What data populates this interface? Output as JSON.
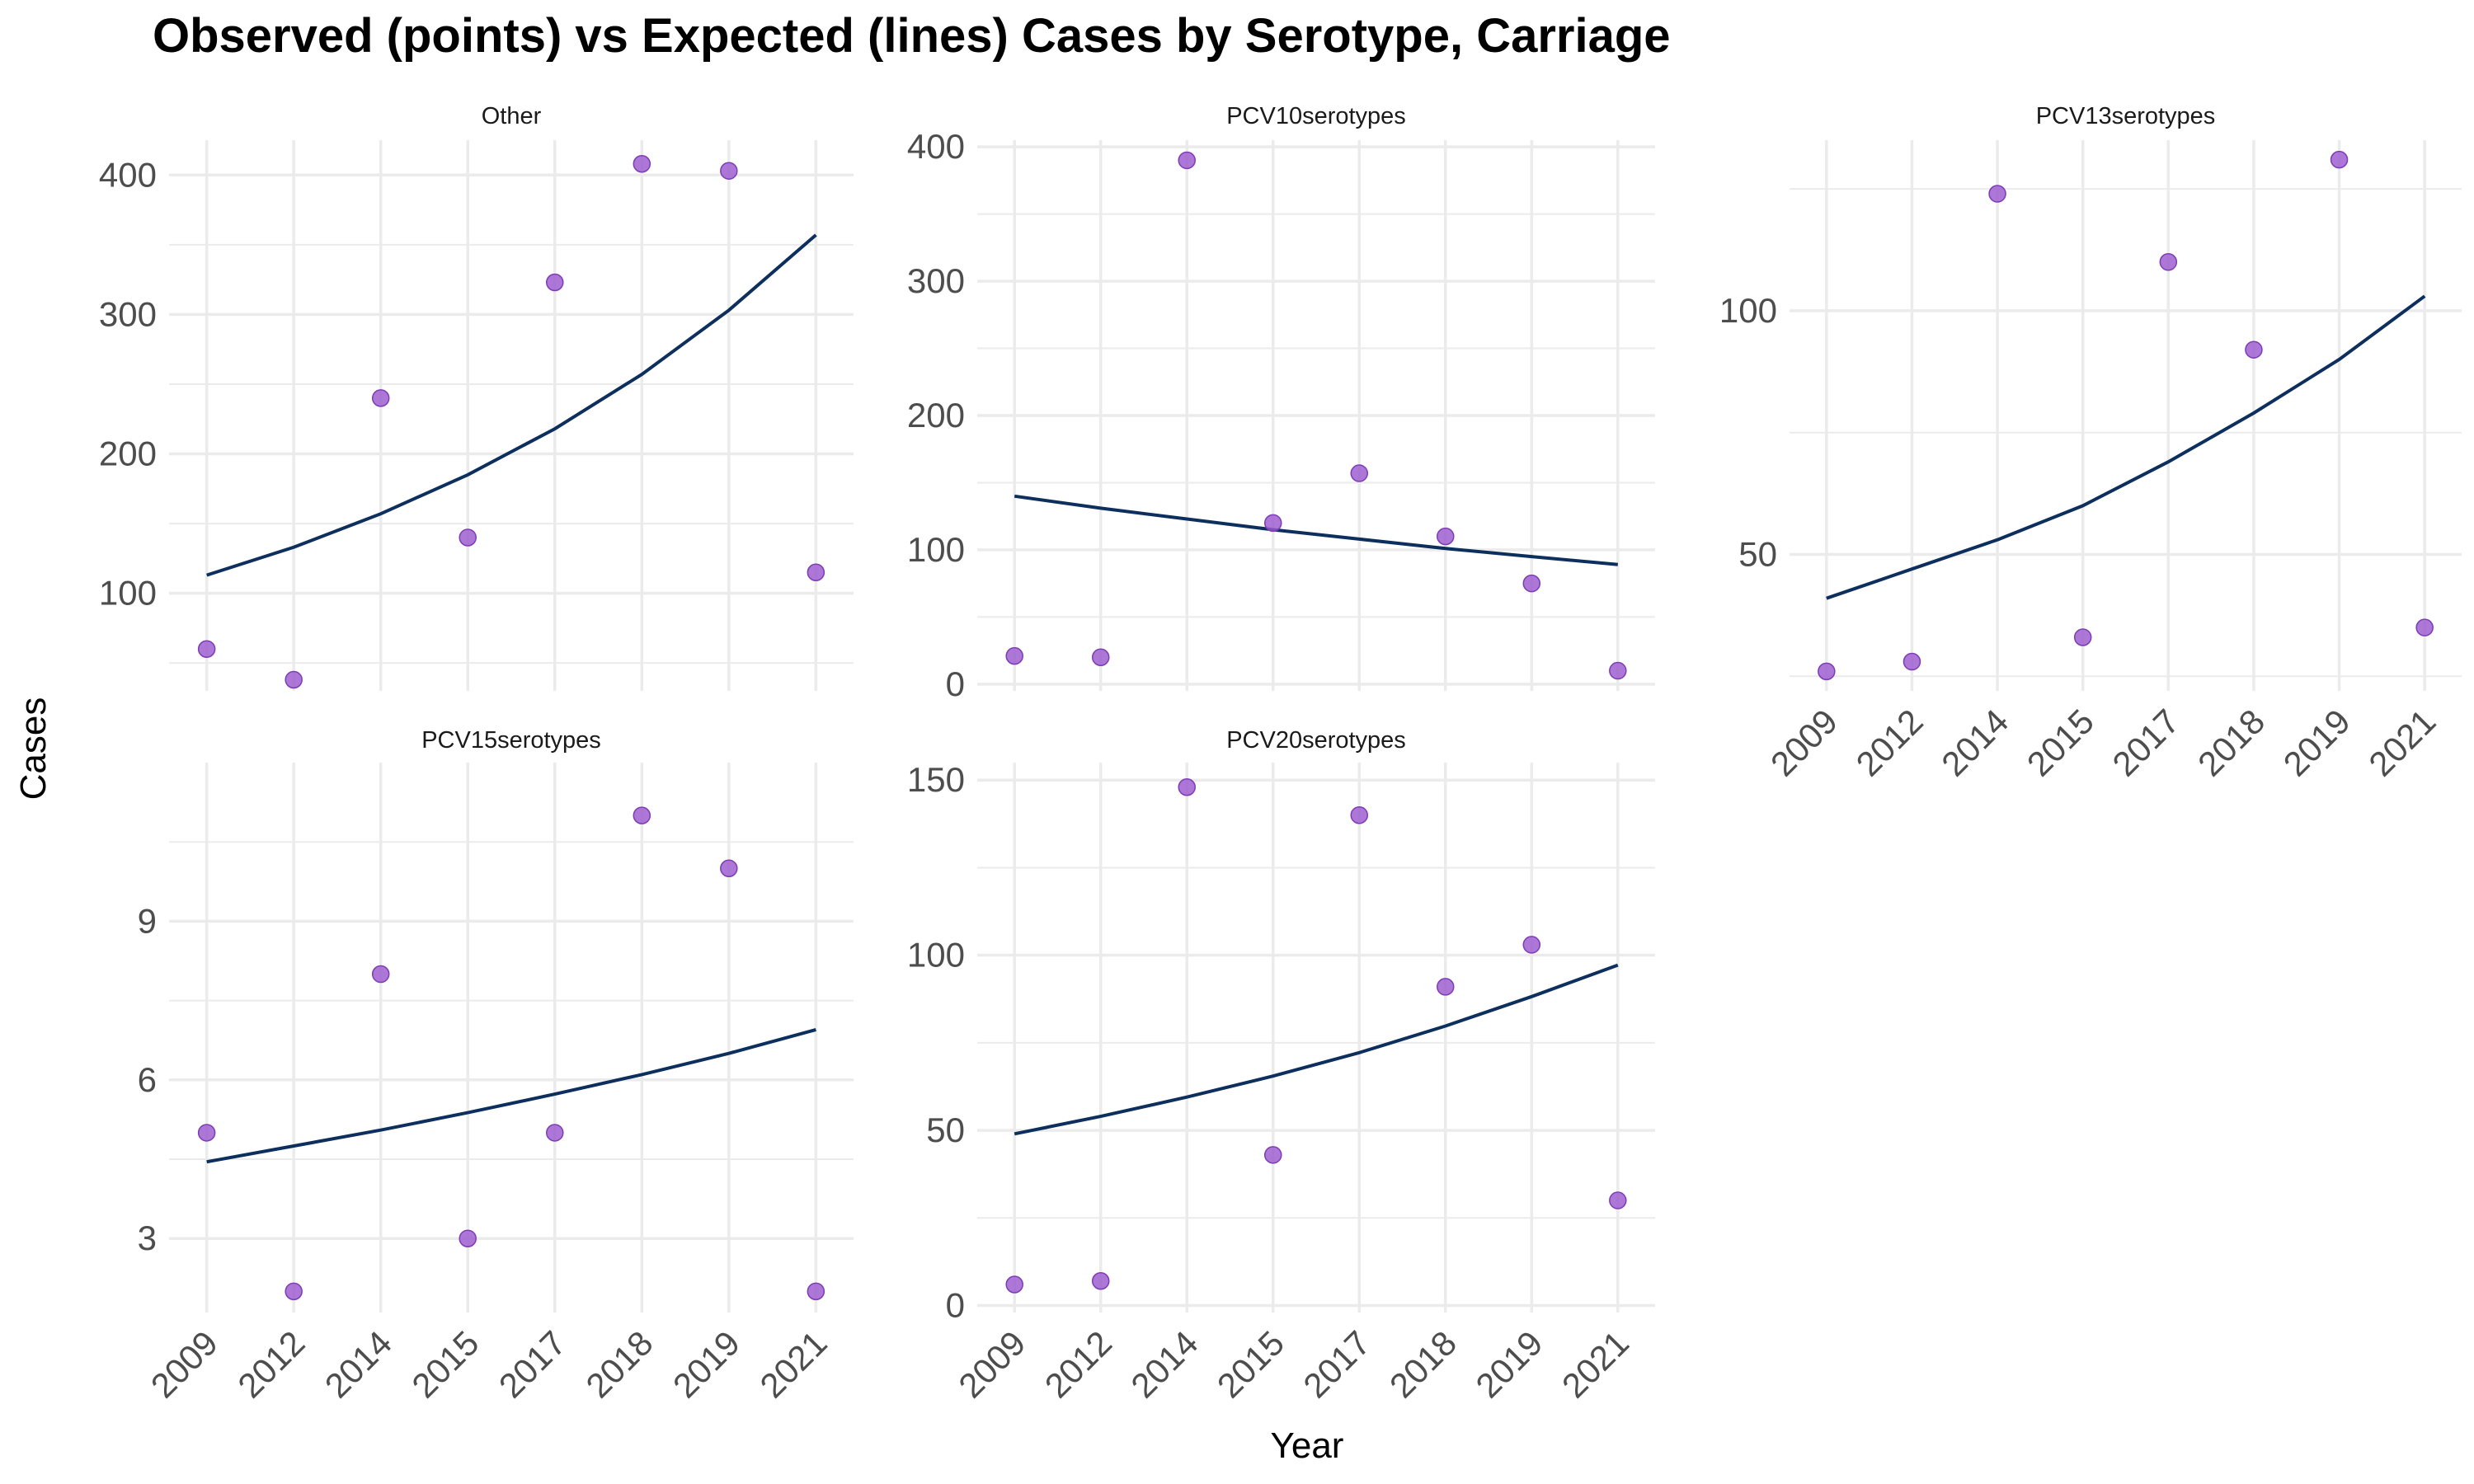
{
  "title": "Observed (points) vs Expected (lines) Cases by Serotype, Carriage",
  "chart_data": {
    "type": "scatter",
    "xlabel": "Year",
    "ylabel": "Cases",
    "categories": [
      "2009",
      "2012",
      "2014",
      "2015",
      "2017",
      "2018",
      "2019",
      "2021"
    ],
    "colors": {
      "observed": "#9b59d0",
      "expected": "#0d2f5e",
      "grid": "#ebebeb"
    },
    "panels": [
      {
        "name": "Other",
        "ylim": [
          30,
          425
        ],
        "yticks": [
          100,
          200,
          300,
          400
        ],
        "observed": [
          60,
          38,
          240,
          140,
          323,
          408,
          403,
          115
        ],
        "expected": [
          113,
          133,
          157,
          185,
          218,
          257,
          303,
          357
        ]
      },
      {
        "name": "PCV10serotypes",
        "ylim": [
          -5,
          405
        ],
        "yticks": [
          0,
          100,
          200,
          300,
          400
        ],
        "observed": [
          21,
          20,
          390,
          120,
          157,
          110,
          75,
          10
        ],
        "expected": [
          140,
          131,
          123,
          115,
          108,
          101,
          95,
          89
        ]
      },
      {
        "name": "PCV13serotypes",
        "ylim": [
          22,
          135
        ],
        "yticks": [
          50,
          100
        ],
        "observed": [
          26,
          28,
          124,
          33,
          110,
          92,
          131,
          35
        ],
        "expected": [
          41,
          47,
          53,
          60,
          69,
          79,
          90,
          103
        ]
      },
      {
        "name": "PCV15serotypes",
        "ylim": [
          1.6,
          12.0
        ],
        "yticks": [
          3,
          6,
          9
        ],
        "observed": [
          5,
          2,
          8,
          3,
          5,
          11,
          10,
          2
        ],
        "expected": [
          4.45,
          4.75,
          5.05,
          5.38,
          5.73,
          6.1,
          6.5,
          6.95
        ]
      },
      {
        "name": "PCV20serotypes",
        "ylim": [
          -2,
          155
        ],
        "yticks": [
          0,
          50,
          100,
          150
        ],
        "observed": [
          6,
          7,
          148,
          43,
          140,
          91,
          103,
          30
        ],
        "expected": [
          49,
          54,
          59.5,
          65.5,
          72.2,
          79.8,
          88.2,
          97.2
        ]
      }
    ]
  }
}
